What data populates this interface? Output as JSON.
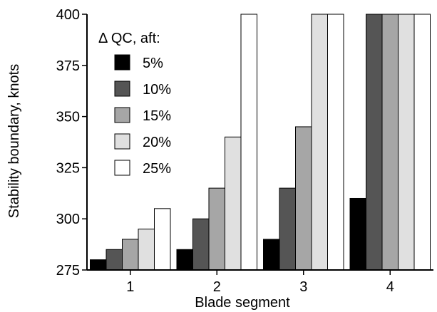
{
  "chart_data": {
    "type": "bar",
    "xlabel": "Blade segment",
    "ylabel": "Stability boundary, knots",
    "ylim": [
      275,
      400
    ],
    "yticks": [
      275,
      300,
      325,
      350,
      375,
      400
    ],
    "categories": [
      "1",
      "2",
      "3",
      "4"
    ],
    "legend": {
      "title": "Δ QC, aft:",
      "placement": "top-left"
    },
    "grid": false,
    "series": [
      {
        "name": "5%",
        "color": "#000000",
        "values": [
          280,
          285,
          290,
          310
        ]
      },
      {
        "name": "10%",
        "color": "#555555",
        "values": [
          285,
          300,
          315,
          400
        ]
      },
      {
        "name": "15%",
        "color": "#a6a6a6",
        "values": [
          290,
          315,
          345,
          400
        ]
      },
      {
        "name": "20%",
        "color": "#e0e0e0",
        "values": [
          295,
          340,
          400,
          400
        ]
      },
      {
        "name": "25%",
        "color": "#ffffff",
        "values": [
          305,
          400,
          400,
          400
        ]
      }
    ]
  }
}
